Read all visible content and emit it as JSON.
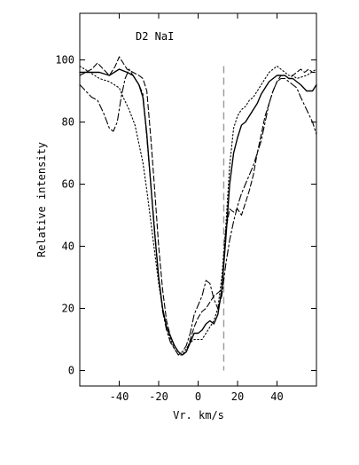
{
  "chart_data": {
    "type": "line",
    "title": "",
    "annotation": "D2 NaI",
    "xlabel": "Vr. km/s",
    "ylabel": "Relative intensity",
    "xlim": [
      -60,
      60
    ],
    "ylim": [
      -5,
      115
    ],
    "x_ticks": [
      -40,
      -20,
      0,
      20,
      40
    ],
    "y_ticks": [
      0,
      20,
      40,
      60,
      80,
      100
    ],
    "x_tick_labels": [
      "-40",
      "-20",
      "0",
      "20",
      "40"
    ],
    "y_tick_labels": [
      "0",
      "20",
      "40",
      "60",
      "80",
      "100"
    ],
    "grid": false,
    "legend": "none",
    "reference_line": {
      "x": 13,
      "style": "dashed",
      "color": "#999999"
    },
    "series": [
      {
        "style": "solid",
        "color": "#000000",
        "x": [
          -60,
          -50,
          -45,
          -40,
          -36,
          -33,
          -30,
          -28,
          -26,
          -24,
          -22,
          -20,
          -18,
          -16,
          -14,
          -12,
          -10,
          -8,
          -6,
          -4,
          -2,
          0,
          2,
          4,
          6,
          8,
          10,
          12,
          14,
          16,
          18,
          20,
          22,
          24,
          26,
          28,
          30,
          32,
          34,
          36,
          38,
          40,
          42,
          44,
          46,
          48,
          50,
          52,
          55,
          58,
          60
        ],
        "y": [
          96,
          96,
          95,
          97,
          96,
          95,
          92,
          88,
          76,
          60,
          44,
          30,
          20,
          14,
          11,
          8,
          6,
          5,
          6,
          9,
          12,
          12,
          13,
          15,
          16,
          15,
          18,
          26,
          42,
          60,
          70,
          75,
          79,
          80,
          82,
          84,
          86,
          89,
          91,
          93,
          94,
          95,
          95,
          95,
          94,
          94,
          93,
          92,
          90,
          90,
          92
        ]
      },
      {
        "style": "dotted",
        "color": "#000000",
        "x": [
          -60,
          -55,
          -50,
          -45,
          -40,
          -38,
          -35,
          -32,
          -30,
          -28,
          -26,
          -24,
          -22,
          -20,
          -18,
          -16,
          -14,
          -12,
          -10,
          -8,
          -6,
          -4,
          -2,
          0,
          2,
          4,
          6,
          8,
          10,
          12,
          14,
          16,
          18,
          20,
          22,
          24,
          26,
          28,
          30,
          32,
          34,
          36,
          38,
          40,
          42,
          44,
          46,
          48,
          50,
          55,
          60
        ],
        "y": [
          98,
          96,
          94,
          93,
          91,
          88,
          84,
          79,
          73,
          67,
          58,
          48,
          38,
          28,
          20,
          14,
          10,
          7,
          5,
          5,
          7,
          9,
          10,
          10,
          10,
          12,
          14,
          16,
          20,
          30,
          46,
          66,
          78,
          82,
          84,
          85,
          87,
          88,
          90,
          92,
          94,
          96,
          97,
          98,
          97,
          96,
          95,
          95,
          94,
          95,
          97
        ]
      },
      {
        "style": "dashed",
        "color": "#000000",
        "x": [
          -60,
          -57,
          -54,
          -51,
          -48,
          -45,
          -42,
          -40,
          -38,
          -36,
          -33,
          -30,
          -28,
          -26,
          -24,
          -22,
          -20,
          -18,
          -16,
          -14,
          -12,
          -10,
          -8,
          -6,
          -4,
          -2,
          0,
          2,
          4,
          6,
          8,
          10,
          12,
          14,
          16,
          18,
          20,
          22,
          24,
          26,
          28,
          30,
          32,
          34,
          36,
          38,
          40,
          42,
          44,
          46,
          48,
          50,
          52,
          54,
          56,
          58,
          60
        ],
        "y": [
          95,
          96,
          97,
          99,
          97,
          95,
          98,
          101,
          99,
          97,
          96,
          95,
          94,
          90,
          75,
          58,
          40,
          26,
          16,
          11,
          8,
          6,
          5,
          6,
          10,
          14,
          17,
          19,
          20,
          22,
          24,
          25,
          26,
          45,
          52,
          51,
          52,
          50,
          54,
          58,
          63,
          70,
          76,
          82,
          86,
          90,
          93,
          95,
          95,
          94,
          95,
          96,
          97,
          96,
          97,
          96,
          96
        ]
      },
      {
        "style": "dashdot",
        "color": "#000000",
        "x": [
          -60,
          -57,
          -54,
          -51,
          -48,
          -45,
          -43,
          -41,
          -39,
          -37,
          -35,
          -33,
          -30,
          -28,
          -26,
          -24,
          -22,
          -20,
          -18,
          -16,
          -14,
          -12,
          -10,
          -8,
          -6,
          -4,
          -2,
          0,
          2,
          4,
          6,
          8,
          10,
          12,
          14,
          16,
          18,
          20,
          22,
          24,
          26,
          28,
          30,
          32,
          34,
          36,
          38,
          40,
          42,
          44,
          46,
          48,
          50,
          52,
          55,
          58,
          60
        ],
        "y": [
          92,
          90,
          88,
          87,
          83,
          78,
          77,
          80,
          88,
          94,
          97,
          95,
          92,
          89,
          75,
          60,
          45,
          30,
          19,
          13,
          9,
          7,
          5,
          6,
          8,
          12,
          18,
          21,
          24,
          29,
          28,
          23,
          20,
          24,
          34,
          42,
          48,
          53,
          57,
          60,
          63,
          66,
          70,
          74,
          80,
          86,
          90,
          93,
          94,
          94,
          93,
          92,
          91,
          88,
          84,
          80,
          76
        ]
      }
    ]
  }
}
